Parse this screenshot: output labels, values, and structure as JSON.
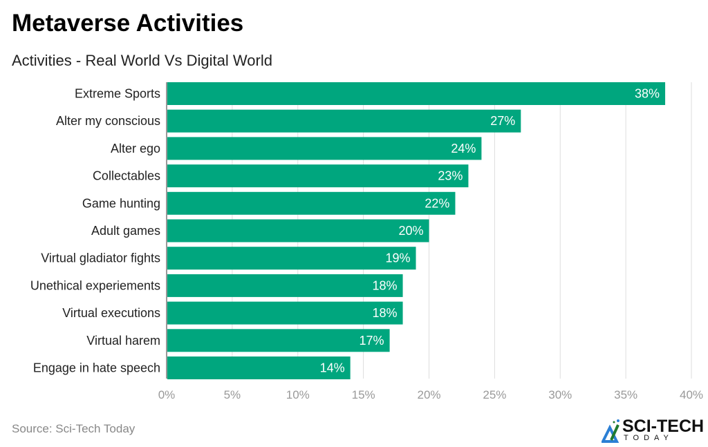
{
  "chart_data": {
    "type": "bar",
    "orientation": "horizontal",
    "title": "Metaverse Activities",
    "subtitle": "Activities - Real World Vs Digital World",
    "categories": [
      "Extreme Sports",
      "Alter my conscious",
      "Alter ego",
      "Collectables",
      "Game hunting",
      "Adult games",
      "Virtual gladiator fights",
      "Unethical experiements",
      "Virtual executions",
      "Virtual harem",
      "Engage in hate speech"
    ],
    "values": [
      38,
      27,
      24,
      23,
      22,
      20,
      19,
      18,
      18,
      17,
      14
    ],
    "data_labels": [
      "38%",
      "27%",
      "24%",
      "23%",
      "22%",
      "20%",
      "19%",
      "18%",
      "18%",
      "17%",
      "14%"
    ],
    "xlim": [
      0,
      40
    ],
    "xticks": [
      "0%",
      "5%",
      "10%",
      "15%",
      "20%",
      "25%",
      "30%",
      "35%",
      "40%"
    ],
    "grid": true,
    "bar_color": "#00a67e",
    "source": "Source: Sci-Tech Today"
  },
  "logo": {
    "line1": "SCI-TECH",
    "line2": "TODAY"
  }
}
